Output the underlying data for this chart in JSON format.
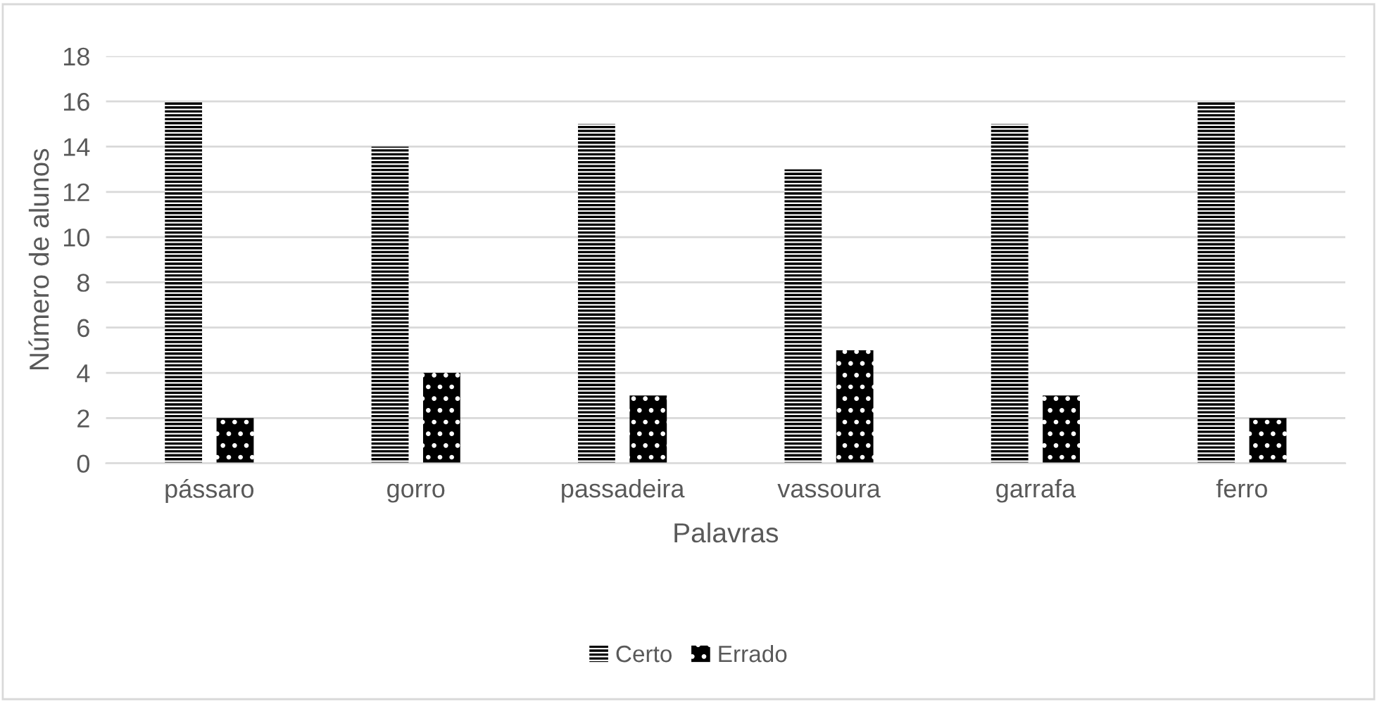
{
  "chart_data": {
    "type": "bar",
    "xlabel": "Palavras",
    "ylabel": "Número de alunos",
    "categories": [
      "pássaro",
      "gorro",
      "passadeira",
      "vassoura",
      "garrafa",
      "ferro"
    ],
    "series": [
      {
        "name": "Certo",
        "color": "#000000",
        "values": [
          16,
          14,
          15,
          13,
          15,
          16
        ]
      },
      {
        "name": "Errado",
        "color": "#000000",
        "values": [
          2,
          4,
          3,
          5,
          3,
          2
        ]
      }
    ],
    "ylim": [
      0,
      18
    ],
    "yticks": [
      0,
      2,
      4,
      6,
      8,
      10,
      12,
      14,
      16,
      18
    ],
    "grid": "y",
    "legend": "bottom"
  }
}
